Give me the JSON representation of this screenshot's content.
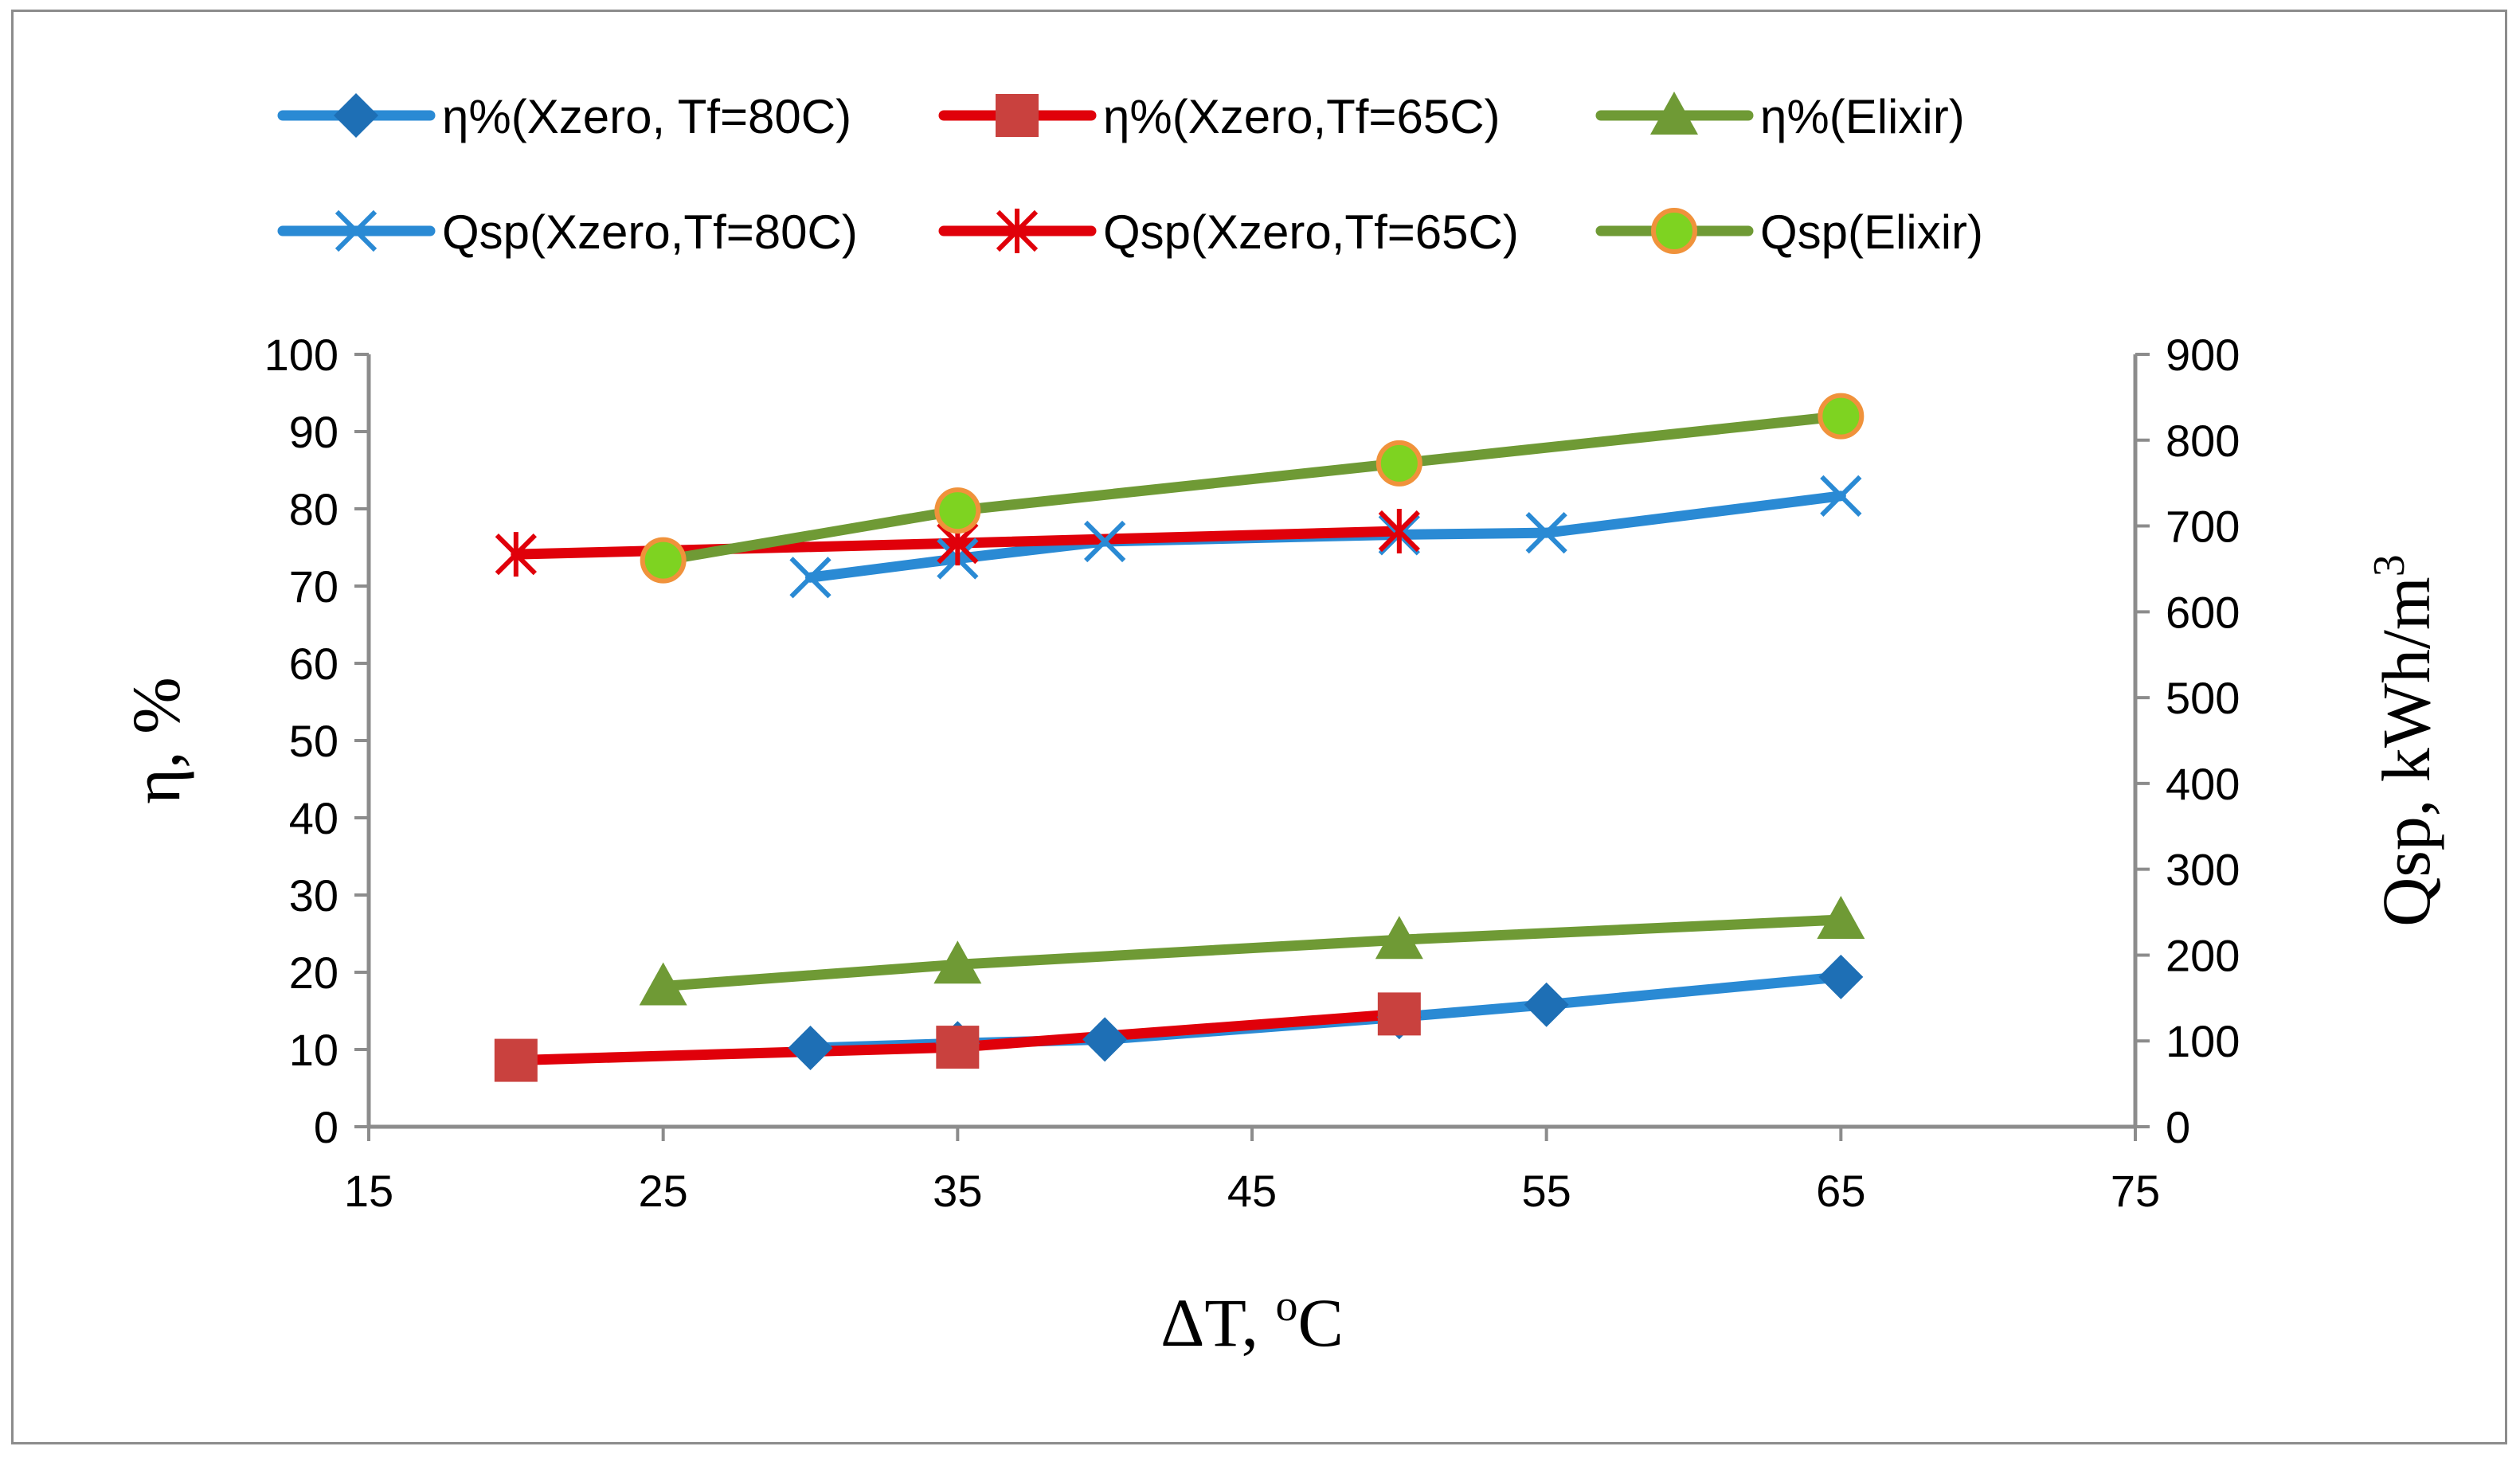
{
  "chart_data": {
    "type": "line",
    "title": "",
    "xlabel": "ΔT, ",
    "xlabel_sup": "o",
    "xlabel_suffix": "C",
    "ylabel": "η, %",
    "y2label": "Qsp, kWh/m",
    "y2label_sup": "3",
    "xlim": [
      15,
      75
    ],
    "ylim": [
      0,
      100
    ],
    "y2lim": [
      0,
      900
    ],
    "xticks": [
      15,
      25,
      35,
      45,
      55,
      65,
      75
    ],
    "yticks": [
      0,
      10,
      20,
      30,
      40,
      50,
      60,
      70,
      80,
      90,
      100
    ],
    "y2ticks": [
      0,
      100,
      200,
      300,
      400,
      500,
      600,
      700,
      800,
      900
    ],
    "grid": false,
    "legend_position": "top",
    "series": [
      {
        "name": "η%(Xzero, Tf=80C)",
        "axis": "left",
        "color": "#2a8ad4",
        "marker": "diamond",
        "marker_color": "#1e6fb5",
        "x": [
          30,
          35,
          40,
          50,
          55,
          65
        ],
        "y": [
          10.2,
          10.8,
          11.3,
          14.2,
          15.8,
          19.4
        ]
      },
      {
        "name": "η%(Xzero,Tf=65C)",
        "axis": "left",
        "color": "#e0000a",
        "marker": "square",
        "marker_color": "#c9413e",
        "x": [
          20,
          35,
          50
        ],
        "y": [
          8.6,
          10.3,
          14.6
        ]
      },
      {
        "name": "η%(Elixir)",
        "axis": "left",
        "color": "#6f9a35",
        "marker": "triangle",
        "marker_color": "#6f9a35",
        "x": [
          25,
          35,
          50,
          65
        ],
        "y": [
          18.2,
          21.0,
          24.2,
          26.8
        ]
      },
      {
        "name": "Qsp(Xzero,Tf=80C)",
        "axis": "right",
        "color": "#2a8ad4",
        "marker": "x",
        "marker_color": "#2a8ad4",
        "x": [
          30,
          35,
          40,
          50,
          55,
          65
        ],
        "y": [
          640,
          662,
          682,
          690,
          692,
          735
        ]
      },
      {
        "name": "Qsp(Xzero,Tf=65C)",
        "axis": "right",
        "color": "#e0000a",
        "marker": "asterisk",
        "marker_color": "#e0000a",
        "x": [
          20,
          35,
          50
        ],
        "y": [
          667,
          680,
          694
        ]
      },
      {
        "name": "Qsp(Elixir)",
        "axis": "right",
        "color": "#6f9a35",
        "marker": "circle",
        "marker_color": "#7ed321",
        "marker_edge": "#f0923b",
        "x": [
          25,
          35,
          50,
          65
        ],
        "y": [
          660,
          718,
          773,
          828
        ]
      }
    ]
  }
}
